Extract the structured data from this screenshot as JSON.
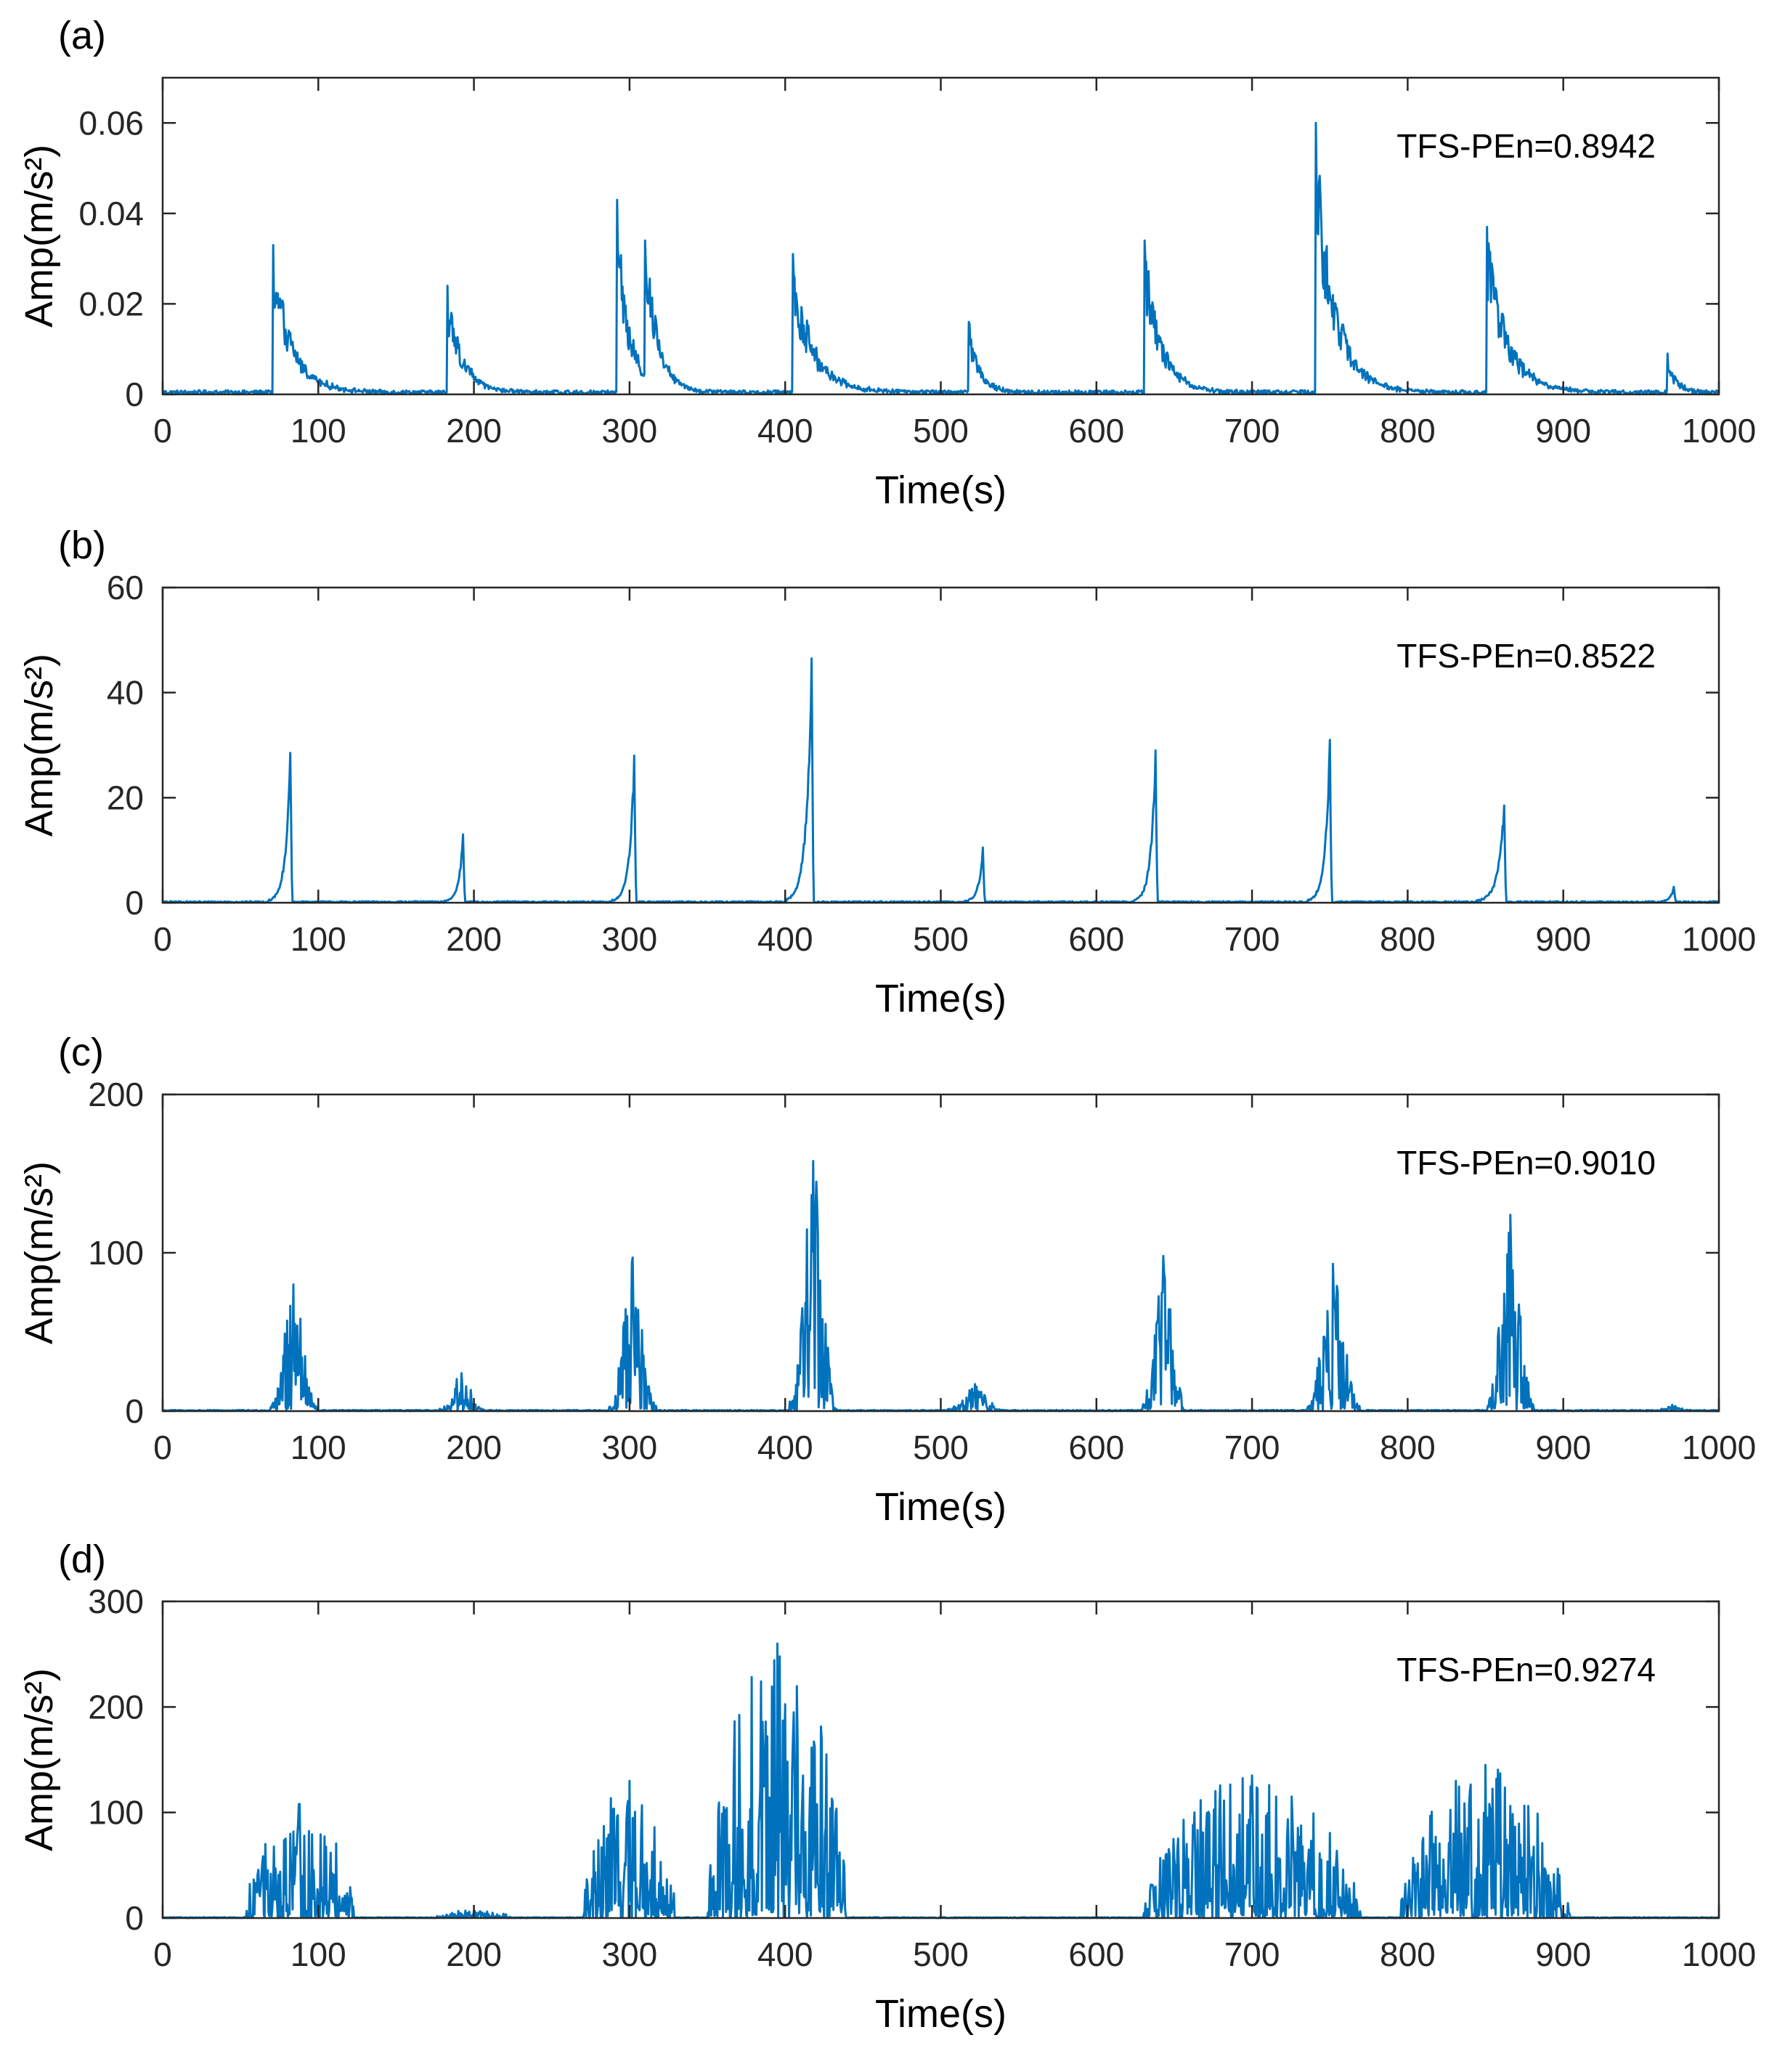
{
  "colors": {
    "signal": "#0072BD",
    "axis": "#262626"
  },
  "chart_data": [
    {
      "type": "line",
      "panel_label": "(a)",
      "xlabel": "Time(s)",
      "ylabel": "Amp(m/s²)",
      "xlim": [
        0,
        1000
      ],
      "ylim": [
        0,
        0.07
      ],
      "xticks": [
        "0",
        "100",
        "200",
        "300",
        "400",
        "500",
        "600",
        "700",
        "800",
        "900",
        "1000"
      ],
      "yticks": [
        "0",
        "0.02",
        "0.04",
        "0.06"
      ],
      "ytick_values": [
        0,
        0.02,
        0.04,
        0.06
      ],
      "annotation": "TFS-PEn=0.8942",
      "baseline": 0.0006,
      "bursts": [
        {
          "t": 71,
          "peak": 0.033,
          "shape": "decay",
          "width": 28
        },
        {
          "t": 183,
          "peak": 0.024,
          "shape": "decay",
          "width": 22
        },
        {
          "t": 292,
          "peak": 0.043,
          "shape": "decay",
          "width": 18
        },
        {
          "t": 310,
          "peak": 0.034,
          "shape": "decay",
          "width": 18
        },
        {
          "t": 405,
          "peak": 0.031,
          "shape": "decay",
          "width": 30
        },
        {
          "t": 518,
          "peak": 0.016,
          "shape": "decay",
          "width": 16
        },
        {
          "t": 631,
          "peak": 0.034,
          "shape": "decay",
          "width": 24
        },
        {
          "t": 741,
          "peak": 0.06,
          "shape": "decay",
          "width": 28
        },
        {
          "t": 851,
          "peak": 0.037,
          "shape": "decay",
          "width": 30
        },
        {
          "t": 967,
          "peak": 0.009,
          "shape": "decay",
          "width": 12
        }
      ]
    },
    {
      "type": "line",
      "panel_label": "(b)",
      "xlabel": "Time(s)",
      "ylabel": "Amp(m/s²)",
      "xlim": [
        0,
        1000
      ],
      "ylim": [
        0,
        60
      ],
      "xticks": [
        "0",
        "100",
        "200",
        "300",
        "400",
        "500",
        "600",
        "700",
        "800",
        "900",
        "1000"
      ],
      "yticks": [
        "0",
        "20",
        "40",
        "60"
      ],
      "ytick_values": [
        0,
        20,
        40,
        60
      ],
      "annotation": "TFS-PEn=0.8522",
      "baseline": 0.2,
      "bursts": [
        {
          "t": 82,
          "peak": 28.5,
          "shape": "rise",
          "width": 14
        },
        {
          "t": 193,
          "peak": 13,
          "shape": "rise",
          "width": 12
        },
        {
          "t": 303,
          "peak": 28,
          "shape": "rise",
          "width": 14
        },
        {
          "t": 417,
          "peak": 46.5,
          "shape": "rise",
          "width": 16
        },
        {
          "t": 527,
          "peak": 10.5,
          "shape": "rise",
          "width": 12
        },
        {
          "t": 638,
          "peak": 29,
          "shape": "rise",
          "width": 14
        },
        {
          "t": 750,
          "peak": 31,
          "shape": "rise",
          "width": 14
        },
        {
          "t": 862,
          "peak": 18.5,
          "shape": "rise",
          "width": 18
        },
        {
          "t": 971,
          "peak": 3,
          "shape": "rise",
          "width": 10
        }
      ]
    },
    {
      "type": "line",
      "panel_label": "(c)",
      "xlabel": "Time(s)",
      "ylabel": "Amp(m/s²)",
      "xlim": [
        0,
        1000
      ],
      "ylim": [
        0,
        200
      ],
      "xticks": [
        "0",
        "100",
        "200",
        "300",
        "400",
        "500",
        "600",
        "700",
        "800",
        "900",
        "1000"
      ],
      "yticks": [
        "0",
        "100",
        "200"
      ],
      "ytick_values": [
        0,
        100,
        200
      ],
      "annotation": "TFS-PEn=0.9010",
      "baseline": 0.5,
      "bursts": [
        {
          "t": 84,
          "peak": 80,
          "shape": "cluster",
          "width": 30
        },
        {
          "t": 192,
          "peak": 24,
          "shape": "cluster",
          "width": 28
        },
        {
          "t": 302,
          "peak": 97,
          "shape": "cluster",
          "width": 30
        },
        {
          "t": 418,
          "peak": 158,
          "shape": "cluster",
          "width": 30
        },
        {
          "t": 522,
          "peak": 17,
          "shape": "cluster",
          "width": 36
        },
        {
          "t": 643,
          "peak": 98,
          "shape": "cluster",
          "width": 28
        },
        {
          "t": 752,
          "peak": 93,
          "shape": "cluster",
          "width": 34
        },
        {
          "t": 866,
          "peak": 124,
          "shape": "cluster",
          "width": 30
        },
        {
          "t": 970,
          "peak": 4,
          "shape": "cluster",
          "width": 24
        }
      ]
    },
    {
      "type": "line",
      "panel_label": "(d)",
      "xlabel": "Time(s)",
      "ylabel": "Amp(m/s²)",
      "xlim": [
        0,
        1000
      ],
      "ylim": [
        0,
        300
      ],
      "xticks": [
        "0",
        "100",
        "200",
        "300",
        "400",
        "500",
        "600",
        "700",
        "800",
        "900",
        "1000"
      ],
      "yticks": [
        "0",
        "100",
        "200",
        "300"
      ],
      "ytick_values": [
        0,
        100,
        200,
        300
      ],
      "annotation": "TFS-PEn=0.9274",
      "baseline": 0.5,
      "bursts": [
        {
          "t": 88,
          "peak": 108,
          "shape": "dense",
          "width": 70
        },
        {
          "t": 200,
          "peak": 7,
          "shape": "dense",
          "width": 50
        },
        {
          "t": 300,
          "peak": 130,
          "shape": "dense",
          "width": 60
        },
        {
          "t": 395,
          "peak": 260,
          "shape": "dense",
          "width": 90
        },
        {
          "t": 700,
          "peak": 135,
          "shape": "dense",
          "width": 140
        },
        {
          "t": 850,
          "peak": 145,
          "shape": "dense",
          "width": 110
        }
      ]
    }
  ]
}
